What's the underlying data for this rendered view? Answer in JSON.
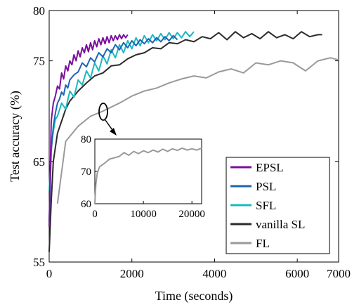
{
  "chart_data": [
    {
      "type": "line",
      "title": "",
      "xlabel": "Time (seconds)",
      "ylabel": "Test accuracy (%)",
      "xlim": [
        0,
        7000
      ],
      "ylim": [
        55,
        80
      ],
      "xticks": [
        0,
        2000,
        4000,
        6000,
        7000
      ],
      "yticks": [
        55,
        65,
        75,
        80
      ],
      "grid": false,
      "legend_position": "bottom-right",
      "series": [
        {
          "name": "EPSL",
          "color": "#7b0f9c",
          "x": [
            0,
            50,
            100,
            150,
            200,
            250,
            300,
            350,
            400,
            450,
            500,
            550,
            600,
            650,
            700,
            750,
            800,
            850,
            900,
            950,
            1000,
            1050,
            1100,
            1150,
            1200,
            1250,
            1300,
            1350,
            1400,
            1450,
            1500,
            1550,
            1600,
            1650,
            1700,
            1750,
            1800,
            1850,
            1900
          ],
          "y": [
            58.5,
            69.0,
            70.8,
            71.5,
            72.5,
            72.2,
            73.8,
            73.2,
            74.5,
            74.0,
            75.0,
            74.6,
            75.6,
            75.0,
            76.0,
            75.4,
            76.3,
            75.8,
            76.6,
            75.9,
            76.8,
            76.1,
            77.0,
            76.4,
            77.2,
            76.6,
            77.3,
            76.7,
            77.4,
            76.8,
            77.5,
            77.0,
            77.5,
            77.1,
            77.6,
            77.2,
            77.6,
            77.3,
            77.6
          ]
        },
        {
          "name": "PSL",
          "color": "#1f63b4",
          "x": [
            0,
            50,
            100,
            150,
            200,
            250,
            300,
            350,
            400,
            450,
            500,
            600,
            700,
            800,
            900,
            1000,
            1100,
            1200,
            1300,
            1400,
            1500,
            1600,
            1700,
            1800,
            1900,
            2000,
            2100,
            2200,
            2300,
            2400,
            2500,
            2600,
            2700,
            2800,
            2900,
            3000,
            3100
          ],
          "y": [
            59.0,
            66.0,
            68.5,
            69.8,
            70.8,
            71.2,
            71.9,
            71.6,
            72.6,
            72.3,
            73.1,
            73.6,
            73.9,
            74.8,
            74.4,
            75.3,
            74.9,
            75.8,
            75.4,
            76.2,
            75.8,
            76.6,
            76.1,
            76.8,
            76.3,
            77.0,
            76.5,
            77.1,
            76.7,
            77.2,
            76.8,
            77.3,
            76.9,
            77.4,
            77.0,
            77.5,
            77.1
          ]
        },
        {
          "name": "SFL",
          "color": "#1ab9bf",
          "x": [
            0,
            50,
            100,
            150,
            200,
            300,
            400,
            500,
            600,
            700,
            800,
            900,
            1000,
            1100,
            1200,
            1300,
            1400,
            1500,
            1600,
            1700,
            1800,
            1900,
            2000,
            2100,
            2200,
            2300,
            2400,
            2500,
            2600,
            2700,
            2800,
            2900,
            3000,
            3100,
            3200,
            3300,
            3400,
            3500
          ],
          "y": [
            62.0,
            66.5,
            68.0,
            69.2,
            69.5,
            70.8,
            70.2,
            72.0,
            71.4,
            73.1,
            72.6,
            74.0,
            73.3,
            74.8,
            74.0,
            75.5,
            74.7,
            76.1,
            75.3,
            76.6,
            75.8,
            77.0,
            76.2,
            77.3,
            76.5,
            77.5,
            76.8,
            77.6,
            77.0,
            77.7,
            77.1,
            77.8,
            77.2,
            77.8,
            77.3,
            77.9,
            77.4,
            77.9
          ]
        },
        {
          "name": "vanilla SL",
          "color": "#2b2b2b",
          "x": [
            0,
            50,
            100,
            200,
            300,
            400,
            500,
            700,
            900,
            1100,
            1300,
            1500,
            1700,
            1900,
            2100,
            2300,
            2500,
            2700,
            2900,
            3100,
            3300,
            3500,
            3700,
            3900,
            4100,
            4300,
            4500,
            4700,
            4900,
            5100,
            5300,
            5500,
            5700,
            5900,
            6100,
            6300,
            6500,
            6600
          ],
          "y": [
            56.0,
            61.0,
            65.0,
            67.8,
            69.0,
            70.2,
            71.0,
            72.0,
            72.8,
            73.5,
            73.8,
            74.5,
            74.6,
            75.2,
            75.6,
            75.8,
            76.3,
            76.2,
            76.8,
            76.7,
            77.1,
            76.9,
            77.4,
            77.2,
            77.8,
            77.1,
            77.9,
            77.3,
            77.7,
            77.2,
            77.9,
            77.3,
            77.6,
            77.2,
            77.9,
            77.4,
            77.6,
            77.6
          ]
        },
        {
          "name": "FL",
          "color": "#9a9a9a",
          "x": [
            200,
            400,
            700,
            1000,
            1300,
            1700,
            2000,
            2300,
            2600,
            2900,
            3200,
            3500,
            3800,
            4100,
            4400,
            4700,
            5000,
            5300,
            5600,
            5900,
            6200,
            6500,
            6800,
            7000
          ],
          "y": [
            60.8,
            67.0,
            68.5,
            69.5,
            70.0,
            70.8,
            71.5,
            72.0,
            72.3,
            72.8,
            73.2,
            73.5,
            73.3,
            73.9,
            74.2,
            73.8,
            74.8,
            74.6,
            75.0,
            74.8,
            74.0,
            75.0,
            75.3,
            75.1
          ]
        }
      ]
    },
    {
      "type": "line",
      "title": "",
      "xlabel": "",
      "ylabel": "",
      "xlim": [
        0,
        22000
      ],
      "ylim": [
        60,
        80
      ],
      "xticks": [
        0,
        10000,
        20000
      ],
      "yticks": [
        60,
        70,
        80
      ],
      "grid": false,
      "series": [
        {
          "color": "#9a9a9a",
          "x": [
            0,
            200,
            500,
            1000,
            1500,
            2000,
            3000,
            4000,
            5000,
            6000,
            7000,
            8000,
            9000,
            10000,
            11000,
            12000,
            13000,
            14000,
            15000,
            16000,
            17000,
            18000,
            19000,
            20000,
            21000,
            22000
          ],
          "y": [
            60.0,
            66.0,
            69.5,
            71.5,
            72.0,
            72.5,
            73.8,
            74.2,
            74.6,
            75.8,
            75.0,
            76.2,
            75.5,
            76.4,
            75.8,
            76.6,
            76.0,
            76.9,
            76.2,
            77.0,
            76.5,
            77.2,
            76.6,
            77.0,
            76.6,
            77.2
          ]
        }
      ]
    }
  ]
}
